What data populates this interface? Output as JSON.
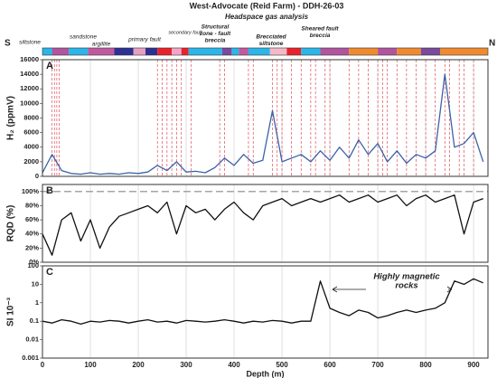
{
  "title": "West-Advocate (Reid Farm) - DDH-26-03",
  "subtitle": "Headspace gas analysis",
  "lithology": {
    "left": "S",
    "right": "N",
    "labels": [
      {
        "lines": [
          "siltstone"
        ],
        "color": "#222222"
      },
      {
        "lines": [
          "sandstone"
        ],
        "color": "#222222"
      },
      {
        "lines": [
          "argillite"
        ],
        "color": "#222222"
      },
      {
        "lines": [
          "primary fault"
        ],
        "color": "#d4141c"
      },
      {
        "lines": [
          "secondary fault"
        ],
        "color": "#d4141c"
      },
      {
        "lines": [
          "Structural",
          "zone - fault",
          "breccia"
        ],
        "color": "#d4141c"
      },
      {
        "lines": [
          "Brecciated",
          "siltstone"
        ],
        "color": "#d4141c"
      },
      {
        "lines": [
          "Sheared fault",
          "breccia"
        ],
        "color": "#d4141c"
      }
    ],
    "units": [
      {
        "from": 0,
        "to": 20,
        "color": "#2bb5e8"
      },
      {
        "from": 20,
        "to": 55,
        "color": "#b0559e"
      },
      {
        "from": 55,
        "to": 95,
        "color": "#2bb5e8"
      },
      {
        "from": 95,
        "to": 150,
        "color": "#c05aa0"
      },
      {
        "from": 150,
        "to": 190,
        "color": "#2e3192"
      },
      {
        "from": 190,
        "to": 215,
        "color": "#e8a0c0"
      },
      {
        "from": 215,
        "to": 240,
        "color": "#2e3192"
      },
      {
        "from": 240,
        "to": 270,
        "color": "#e8232a"
      },
      {
        "from": 270,
        "to": 290,
        "color": "#f3a6c8"
      },
      {
        "from": 290,
        "to": 305,
        "color": "#e8232a"
      },
      {
        "from": 305,
        "to": 375,
        "color": "#2bb5e8"
      },
      {
        "from": 375,
        "to": 395,
        "color": "#7a4a9c"
      },
      {
        "from": 395,
        "to": 410,
        "color": "#2bb5e8"
      },
      {
        "from": 410,
        "to": 430,
        "color": "#c05aa0"
      },
      {
        "from": 430,
        "to": 475,
        "color": "#2bb5e8"
      },
      {
        "from": 475,
        "to": 510,
        "color": "#f4b8c8"
      },
      {
        "from": 510,
        "to": 540,
        "color": "#e8232a"
      },
      {
        "from": 540,
        "to": 580,
        "color": "#2bb5e8"
      },
      {
        "from": 580,
        "to": 640,
        "color": "#b0559e"
      },
      {
        "from": 640,
        "to": 700,
        "color": "#f08a30"
      },
      {
        "from": 700,
        "to": 740,
        "color": "#b0559e"
      },
      {
        "from": 740,
        "to": 790,
        "color": "#f08a30"
      },
      {
        "from": 790,
        "to": 830,
        "color": "#7a4a9c"
      },
      {
        "from": 830,
        "to": 930,
        "color": "#f08a30"
      }
    ]
  },
  "chart_data": [
    {
      "type": "line",
      "panel_label": "A",
      "ylabel": "H₂ (ppmV)",
      "color": "#3a62a8",
      "grid": true,
      "x": [
        0,
        20,
        40,
        60,
        80,
        100,
        120,
        140,
        160,
        180,
        200,
        220,
        240,
        260,
        280,
        300,
        320,
        340,
        360,
        380,
        400,
        420,
        440,
        460,
        480,
        500,
        520,
        540,
        560,
        580,
        600,
        620,
        640,
        660,
        680,
        700,
        720,
        740,
        760,
        780,
        800,
        820,
        840,
        860,
        880,
        900,
        920
      ],
      "values": [
        500,
        3000,
        800,
        400,
        300,
        500,
        300,
        400,
        300,
        500,
        400,
        600,
        1500,
        800,
        2000,
        600,
        700,
        500,
        1200,
        2500,
        1500,
        3000,
        1800,
        2200,
        9000,
        2000,
        2500,
        3000,
        2000,
        3500,
        2200,
        4000,
        2500,
        5000,
        3000,
        4500,
        2000,
        3500,
        1800,
        3000,
        2500,
        3500,
        14000,
        4000,
        4500,
        6000,
        2000
      ],
      "faults": [
        20,
        25,
        30,
        35,
        240,
        250,
        260,
        270,
        280,
        290,
        310,
        370,
        380,
        430,
        440,
        480,
        490,
        500,
        520,
        540,
        560,
        570,
        590,
        600,
        640,
        660,
        680,
        700,
        710,
        720,
        740,
        760,
        780,
        800,
        820,
        840,
        850,
        870,
        880,
        900
      ],
      "xlim": [
        0,
        930
      ],
      "xticks": [
        0,
        100,
        200,
        300,
        400,
        500,
        600,
        700,
        800,
        900
      ],
      "ylim": [
        0,
        16000
      ],
      "yticks": [
        0,
        2000,
        4000,
        6000,
        8000,
        10000,
        12000,
        14000,
        16000
      ]
    },
    {
      "type": "line",
      "panel_label": "B",
      "ylabel": "RQD (%)",
      "color": "#111111",
      "grid": true,
      "reference_line": 100,
      "x": [
        0,
        20,
        40,
        60,
        80,
        100,
        120,
        140,
        160,
        180,
        200,
        220,
        240,
        260,
        280,
        300,
        320,
        340,
        360,
        380,
        400,
        420,
        440,
        460,
        480,
        500,
        520,
        540,
        560,
        580,
        600,
        620,
        640,
        660,
        680,
        700,
        720,
        740,
        760,
        780,
        800,
        820,
        840,
        860,
        880,
        900,
        920
      ],
      "values": [
        40,
        10,
        60,
        70,
        30,
        60,
        20,
        50,
        65,
        70,
        75,
        80,
        70,
        85,
        40,
        80,
        70,
        75,
        60,
        75,
        85,
        70,
        60,
        80,
        85,
        90,
        80,
        85,
        90,
        85,
        90,
        95,
        85,
        90,
        95,
        85,
        90,
        95,
        80,
        90,
        95,
        85,
        90,
        95,
        40,
        85,
        90
      ],
      "xlim": [
        0,
        930
      ],
      "xticks": [
        0,
        100,
        200,
        300,
        400,
        500,
        600,
        700,
        800,
        900
      ],
      "ylim": [
        0,
        110
      ],
      "yticks": [
        {
          "value": 0,
          "label": "0%"
        },
        {
          "value": 20,
          "label": "20%"
        },
        {
          "value": 40,
          "label": "40%"
        },
        {
          "value": 60,
          "label": "60%"
        },
        {
          "value": 80,
          "label": "80%"
        },
        {
          "value": 100,
          "label": "100%"
        }
      ]
    },
    {
      "type": "line",
      "panel_label": "C",
      "ylabel": "SI 10⁻³",
      "xlabel": "Depth (m)",
      "color": "#111111",
      "grid": true,
      "yscale": "log",
      "annotation": [
        "Highly magnetic",
        "rocks"
      ],
      "x": [
        0,
        20,
        40,
        60,
        80,
        100,
        120,
        140,
        160,
        180,
        200,
        220,
        240,
        260,
        280,
        300,
        320,
        340,
        360,
        380,
        400,
        420,
        440,
        460,
        480,
        500,
        520,
        540,
        560,
        580,
        600,
        620,
        640,
        660,
        680,
        700,
        720,
        740,
        760,
        780,
        800,
        820,
        840,
        860,
        880,
        900,
        920
      ],
      "values": [
        0.1,
        0.08,
        0.12,
        0.1,
        0.07,
        0.1,
        0.09,
        0.11,
        0.1,
        0.08,
        0.1,
        0.12,
        0.09,
        0.1,
        0.08,
        0.11,
        0.1,
        0.09,
        0.1,
        0.12,
        0.1,
        0.08,
        0.1,
        0.09,
        0.11,
        0.1,
        0.08,
        0.1,
        0.1,
        15,
        0.5,
        0.3,
        0.2,
        0.4,
        0.3,
        0.15,
        0.2,
        0.3,
        0.4,
        0.3,
        0.4,
        0.5,
        1,
        15,
        10,
        20,
        12
      ],
      "xlim": [
        0,
        930
      ],
      "xticks": [
        0,
        100,
        200,
        300,
        400,
        500,
        600,
        700,
        800,
        900
      ],
      "ylim": [
        0.001,
        100
      ],
      "yticks": [
        0.001,
        0.01,
        0.1,
        1,
        10,
        100
      ]
    }
  ]
}
